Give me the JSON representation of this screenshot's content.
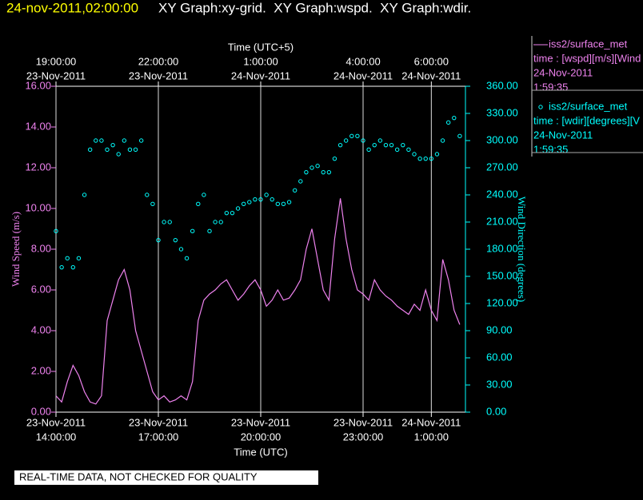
{
  "header": {
    "date": "24-nov-2011,02:00:00",
    "title": "XY Graph:xy-grid.  XY Graph:wspd.  XY Graph:wdir."
  },
  "footer": "REAL-TIME DATA, NOT CHECKED FOR QUALITY",
  "chart_data": {
    "type": "xy",
    "xlabel": "Time (UTC)",
    "x2label": "Time (UTC+5)",
    "ylabel": "Wind Speed (m/s)",
    "y2label": "Wind Direction (degrees)",
    "xlim": [
      "2011-11-23T14:00:00",
      "2011-11-24T02:00:00"
    ],
    "xticks": [
      {
        "value": "2011-11-23T14:00:00",
        "label": [
          "23-Nov-2011",
          "14:00:00"
        ]
      },
      {
        "value": "2011-11-23T17:00:00",
        "label": [
          "23-Nov-2011",
          "17:00:00"
        ]
      },
      {
        "value": "2011-11-23T20:00:00",
        "label": [
          "23-Nov-2011",
          "20:00:00"
        ]
      },
      {
        "value": "2011-11-23T23:00:00",
        "label": [
          "23-Nov-2011",
          "23:00:00"
        ]
      },
      {
        "value": "2011-11-24T01:00:00",
        "label": [
          "24-Nov-2011",
          "1:00:00"
        ]
      }
    ],
    "x2ticks": [
      {
        "value": "2011-11-23T14:00:00",
        "label": [
          "19:00:00",
          "23-Nov-2011"
        ]
      },
      {
        "value": "2011-11-23T17:00:00",
        "label": [
          "22:00:00",
          "23-Nov-2011"
        ]
      },
      {
        "value": "2011-11-23T20:00:00",
        "label": [
          "1:00:00",
          "24-Nov-2011"
        ]
      },
      {
        "value": "2011-11-23T23:00:00",
        "label": [
          "4:00:00",
          "24-Nov-2011"
        ]
      },
      {
        "value": "2011-11-24T01:00:00",
        "label": [
          "6:00:00",
          "24-Nov-2011"
        ]
      }
    ],
    "ylim": [
      0,
      16
    ],
    "yticks": [
      {
        "value": 0,
        "label": "0.00"
      },
      {
        "value": 2,
        "label": "2.00"
      },
      {
        "value": 4,
        "label": "4.00"
      },
      {
        "value": 6,
        "label": "6.00"
      },
      {
        "value": 8,
        "label": "8.00"
      },
      {
        "value": 10,
        "label": "10.00"
      },
      {
        "value": 12,
        "label": "12.00"
      },
      {
        "value": 14,
        "label": "14.00"
      },
      {
        "value": 16,
        "label": "16.00"
      }
    ],
    "y2lim": [
      0,
      360
    ],
    "y2ticks": [
      {
        "value": 0,
        "label": "0.00"
      },
      {
        "value": 30,
        "label": "30.00"
      },
      {
        "value": 60,
        "label": "60.00"
      },
      {
        "value": 90,
        "label": "90.00"
      },
      {
        "value": 120,
        "label": "120.00"
      },
      {
        "value": 150,
        "label": "150.00"
      },
      {
        "value": 180,
        "label": "180.00"
      },
      {
        "value": 210,
        "label": "210.00"
      },
      {
        "value": 240,
        "label": "240.00"
      },
      {
        "value": 270,
        "label": "270.00"
      },
      {
        "value": 300,
        "label": "300.00"
      },
      {
        "value": 330,
        "label": "330.00"
      },
      {
        "value": 360,
        "label": "360.00"
      }
    ],
    "grid": true,
    "x": [
      "2011-11-23T14:00:00",
      "2011-11-23T14:10:00",
      "2011-11-23T14:20:00",
      "2011-11-23T14:30:00",
      "2011-11-23T14:40:00",
      "2011-11-23T14:50:00",
      "2011-11-23T15:00:00",
      "2011-11-23T15:10:00",
      "2011-11-23T15:20:00",
      "2011-11-23T15:30:00",
      "2011-11-23T15:40:00",
      "2011-11-23T15:50:00",
      "2011-11-23T16:00:00",
      "2011-11-23T16:10:00",
      "2011-11-23T16:20:00",
      "2011-11-23T16:30:00",
      "2011-11-23T16:40:00",
      "2011-11-23T16:50:00",
      "2011-11-23T17:00:00",
      "2011-11-23T17:10:00",
      "2011-11-23T17:20:00",
      "2011-11-23T17:30:00",
      "2011-11-23T17:40:00",
      "2011-11-23T17:50:00",
      "2011-11-23T18:00:00",
      "2011-11-23T18:10:00",
      "2011-11-23T18:20:00",
      "2011-11-23T18:30:00",
      "2011-11-23T18:40:00",
      "2011-11-23T18:50:00",
      "2011-11-23T19:00:00",
      "2011-11-23T19:10:00",
      "2011-11-23T19:20:00",
      "2011-11-23T19:30:00",
      "2011-11-23T19:40:00",
      "2011-11-23T19:50:00",
      "2011-11-23T20:00:00",
      "2011-11-23T20:10:00",
      "2011-11-23T20:20:00",
      "2011-11-23T20:30:00",
      "2011-11-23T20:40:00",
      "2011-11-23T20:50:00",
      "2011-11-23T21:00:00",
      "2011-11-23T21:10:00",
      "2011-11-23T21:20:00",
      "2011-11-23T21:30:00",
      "2011-11-23T21:40:00",
      "2011-11-23T21:50:00",
      "2011-11-23T22:00:00",
      "2011-11-23T22:10:00",
      "2011-11-23T22:20:00",
      "2011-11-23T22:30:00",
      "2011-11-23T22:40:00",
      "2011-11-23T22:50:00",
      "2011-11-23T23:00:00",
      "2011-11-23T23:10:00",
      "2011-11-23T23:20:00",
      "2011-11-23T23:30:00",
      "2011-11-23T23:40:00",
      "2011-11-23T23:50:00",
      "2011-11-24T00:00:00",
      "2011-11-24T00:10:00",
      "2011-11-24T00:20:00",
      "2011-11-24T00:30:00",
      "2011-11-24T00:40:00",
      "2011-11-24T00:50:00",
      "2011-11-24T01:00:00",
      "2011-11-24T01:10:00",
      "2011-11-24T01:20:00",
      "2011-11-24T01:30:00",
      "2011-11-24T01:40:00",
      "2011-11-24T01:50:00"
    ],
    "series": [
      {
        "name": "iss2/surface_met",
        "legend_lines": [
          "time : [wspd][m/s][Wind",
          "24-Nov-2011",
          "1:59:35"
        ],
        "type": "line",
        "color": "#ee82ee",
        "values": [
          0.8,
          0.5,
          1.5,
          2.3,
          1.8,
          1.0,
          0.5,
          0.4,
          0.8,
          4.5,
          5.5,
          6.5,
          7.0,
          6.0,
          4.0,
          3.0,
          2.0,
          1.0,
          0.6,
          0.8,
          0.5,
          0.6,
          0.8,
          0.6,
          1.5,
          4.5,
          5.5,
          5.8,
          6.0,
          6.3,
          6.5,
          6.0,
          5.5,
          5.8,
          6.2,
          6.5,
          6.0,
          5.2,
          5.5,
          6.0,
          5.5,
          5.6,
          6.0,
          6.5,
          8.0,
          9.0,
          7.5,
          6.0,
          5.5,
          8.5,
          10.5,
          8.5,
          7.0,
          6.0,
          5.8,
          5.5,
          6.5,
          6.0,
          5.7,
          5.5,
          5.2,
          5.0,
          4.8,
          5.3,
          5.0,
          6.0,
          5.0,
          4.5,
          7.5,
          6.5,
          5.0,
          4.3
        ]
      },
      {
        "name": "iss2/surface_met",
        "legend_lines": [
          "time : [wdir][degrees][V",
          "24-Nov-2011",
          "1:59:35"
        ],
        "type": "scatter",
        "axis": "y2",
        "color": "#00ffff",
        "values": [
          200,
          160,
          170,
          160,
          170,
          240,
          290,
          300,
          300,
          290,
          295,
          285,
          300,
          290,
          290,
          300,
          240,
          230,
          190,
          210,
          210,
          190,
          180,
          170,
          200,
          230,
          240,
          200,
          210,
          210,
          220,
          220,
          225,
          230,
          232,
          235,
          235,
          240,
          235,
          230,
          230,
          232,
          245,
          255,
          265,
          270,
          272,
          265,
          265,
          280,
          295,
          300,
          305,
          305,
          300,
          290,
          295,
          300,
          295,
          295,
          290,
          295,
          290,
          285,
          280,
          280,
          280,
          285,
          300,
          320,
          325,
          305
        ]
      }
    ]
  }
}
